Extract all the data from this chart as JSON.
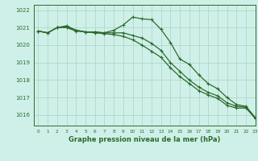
{
  "title": "Graphe pression niveau de la mer (hPa)",
  "bg_color": "#cff0e8",
  "grid_color": "#b0d8c8",
  "line_color": "#2d6a2d",
  "xlim": [
    -0.5,
    23
  ],
  "ylim": [
    1015.4,
    1022.3
  ],
  "yticks": [
    1016,
    1017,
    1018,
    1019,
    1020,
    1021,
    1022
  ],
  "xticks": [
    0,
    1,
    2,
    3,
    4,
    5,
    6,
    7,
    8,
    9,
    10,
    11,
    12,
    13,
    14,
    15,
    16,
    17,
    18,
    19,
    20,
    21,
    22,
    23
  ],
  "series1": [
    1020.8,
    1020.7,
    1021.0,
    1021.05,
    1020.85,
    1020.75,
    1020.75,
    1020.7,
    1020.85,
    1021.15,
    1021.6,
    1021.5,
    1021.45,
    1020.9,
    1020.15,
    1019.2,
    1018.9,
    1018.3,
    1017.8,
    1017.5,
    1017.0,
    1016.6,
    1016.5,
    1015.85
  ],
  "series2": [
    1020.8,
    1020.7,
    1021.0,
    1021.1,
    1020.85,
    1020.75,
    1020.75,
    1020.7,
    1020.7,
    1020.7,
    1020.55,
    1020.4,
    1020.1,
    1019.7,
    1019.0,
    1018.5,
    1018.0,
    1017.6,
    1017.3,
    1017.1,
    1016.7,
    1016.5,
    1016.45,
    1015.8
  ],
  "series3": [
    1020.8,
    1020.7,
    1021.0,
    1021.0,
    1020.8,
    1020.75,
    1020.7,
    1020.65,
    1020.6,
    1020.5,
    1020.3,
    1020.0,
    1019.65,
    1019.3,
    1018.7,
    1018.2,
    1017.8,
    1017.4,
    1017.15,
    1016.95,
    1016.55,
    1016.4,
    1016.4,
    1015.8
  ]
}
